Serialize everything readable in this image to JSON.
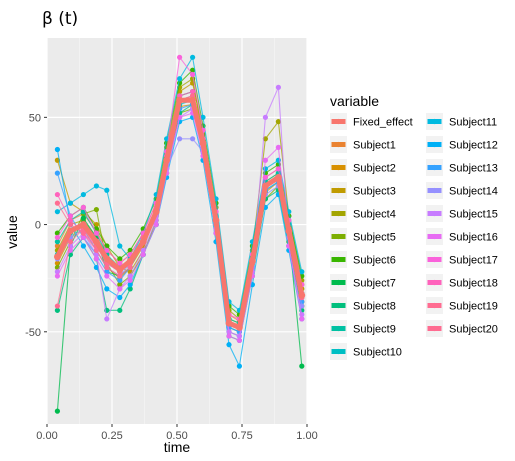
{
  "chart_data": {
    "type": "line",
    "title": "β (t)",
    "xlabel": "time",
    "ylabel": "value",
    "xlim": [
      0,
      1.0
    ],
    "ylim": [
      -93,
      87
    ],
    "xticks": [
      0.0,
      0.25,
      0.5,
      0.75,
      1.0
    ],
    "xtick_labels": [
      "0.00",
      "0.25",
      "0.50",
      "0.75",
      "1.00"
    ],
    "yticks": [
      -50,
      0,
      50
    ],
    "ytick_labels": [
      "-50",
      "0",
      "50"
    ],
    "grid": true,
    "legend_title": "variable",
    "legend_position": "right",
    "x": [
      0.04,
      0.09,
      0.14,
      0.19,
      0.23,
      0.28,
      0.32,
      0.37,
      0.42,
      0.46,
      0.51,
      0.56,
      0.6,
      0.65,
      0.7,
      0.74,
      0.79,
      0.84,
      0.89,
      0.93,
      0.98
    ],
    "series": [
      {
        "name": "Fixed_effect",
        "color": "#F8766D",
        "bold": true,
        "values": [
          -15,
          -3,
          0,
          -8,
          -16,
          -21,
          -17,
          -8,
          6,
          30,
          58,
          58,
          38,
          2,
          -46,
          -48,
          -17,
          18,
          22,
          -3,
          -33
        ]
      },
      {
        "name": "Subject1",
        "color": "#EA8331",
        "bold": false,
        "values": [
          -10,
          2,
          5,
          -3,
          -12,
          -18,
          -14,
          -4,
          10,
          34,
          60,
          62,
          42,
          6,
          -42,
          -45,
          -14,
          22,
          26,
          2,
          -28
        ]
      },
      {
        "name": "Subject2",
        "color": "#D89000",
        "bold": false,
        "values": [
          -18,
          -6,
          -2,
          -12,
          -20,
          -25,
          -20,
          -10,
          4,
          28,
          55,
          56,
          36,
          0,
          -48,
          -50,
          -20,
          15,
          20,
          -6,
          -36
        ]
      },
      {
        "name": "Subject3",
        "color": "#C09B00",
        "bold": false,
        "values": [
          30,
          10,
          6,
          0,
          -10,
          -20,
          -22,
          -12,
          8,
          32,
          62,
          66,
          44,
          4,
          -44,
          -46,
          -16,
          20,
          24,
          0,
          -30
        ]
      },
      {
        "name": "Subject4",
        "color": "#A3A500",
        "bold": false,
        "values": [
          -12,
          0,
          2,
          -6,
          -14,
          -22,
          -18,
          -6,
          8,
          36,
          64,
          68,
          40,
          8,
          -40,
          -44,
          -12,
          40,
          48,
          4,
          -26
        ]
      },
      {
        "name": "Subject5",
        "color": "#7CAE00",
        "bold": false,
        "values": [
          -20,
          -8,
          5,
          7,
          -18,
          -28,
          -24,
          -14,
          2,
          26,
          52,
          54,
          34,
          -2,
          -50,
          -52,
          -22,
          12,
          18,
          -8,
          -38
        ]
      },
      {
        "name": "Subject6",
        "color": "#39B600",
        "bold": false,
        "values": [
          -4,
          4,
          8,
          -2,
          -10,
          -16,
          -12,
          -2,
          12,
          38,
          66,
          72,
          46,
          10,
          -38,
          -42,
          -10,
          24,
          28,
          4,
          -24
        ]
      },
      {
        "name": "Subject7",
        "color": "#00BB4E",
        "bold": false,
        "values": [
          -87,
          -10,
          3,
          -6,
          -22,
          -24,
          -20,
          -8,
          6,
          30,
          58,
          60,
          38,
          2,
          -46,
          -48,
          -18,
          18,
          22,
          -4,
          -66
        ]
      },
      {
        "name": "Subject8",
        "color": "#00BF7D",
        "bold": false,
        "values": [
          -40,
          -14,
          -6,
          -16,
          -40,
          -40,
          -30,
          -14,
          0,
          24,
          52,
          56,
          34,
          -4,
          -52,
          -54,
          -24,
          12,
          16,
          -10,
          -40
        ]
      },
      {
        "name": "Subject9",
        "color": "#00C1A3",
        "bold": false,
        "values": [
          -8,
          2,
          6,
          -4,
          -14,
          -20,
          -16,
          -6,
          8,
          32,
          60,
          62,
          40,
          4,
          -44,
          -46,
          -16,
          20,
          24,
          0,
          -32
        ]
      },
      {
        "name": "Subject10",
        "color": "#00BFC4",
        "bold": false,
        "values": [
          -14,
          -4,
          0,
          -10,
          -18,
          -22,
          -18,
          -8,
          6,
          28,
          56,
          58,
          36,
          0,
          -48,
          -50,
          -18,
          16,
          20,
          -4,
          -34
        ]
      },
      {
        "name": "Subject11",
        "color": "#00BAE0",
        "bold": false,
        "values": [
          6,
          10,
          14,
          18,
          16,
          -10,
          -16,
          -4,
          14,
          40,
          68,
          78,
          50,
          12,
          -36,
          -40,
          -8,
          26,
          30,
          6,
          -22
        ]
      },
      {
        "name": "Subject12",
        "color": "#00B0F6",
        "bold": false,
        "values": [
          35,
          0,
          -10,
          -20,
          -30,
          -34,
          -28,
          -14,
          0,
          22,
          48,
          50,
          30,
          -8,
          -56,
          -66,
          -28,
          8,
          14,
          -12,
          -44
        ]
      },
      {
        "name": "Subject13",
        "color": "#35A2FF",
        "bold": false,
        "values": [
          24,
          4,
          -6,
          -14,
          -22,
          -26,
          -20,
          -8,
          6,
          30,
          54,
          56,
          36,
          0,
          -48,
          -50,
          -20,
          16,
          20,
          -4,
          -36
        ]
      },
      {
        "name": "Subject14",
        "color": "#9590FF",
        "bold": false,
        "values": [
          -16,
          -6,
          -2,
          -12,
          -20,
          -24,
          -18,
          -8,
          4,
          26,
          40,
          40,
          34,
          -2,
          -50,
          -52,
          -20,
          14,
          18,
          -6,
          -38
        ]
      },
      {
        "name": "Subject15",
        "color": "#C77CFF",
        "bold": false,
        "values": [
          -22,
          -10,
          -4,
          -14,
          -44,
          -30,
          -24,
          -12,
          2,
          26,
          50,
          54,
          34,
          -2,
          -50,
          -52,
          -22,
          50,
          64,
          -10,
          -42
        ]
      },
      {
        "name": "Subject16",
        "color": "#E76BF3",
        "bold": false,
        "values": [
          -24,
          -12,
          -6,
          -16,
          -24,
          -30,
          -26,
          -14,
          0,
          24,
          50,
          52,
          32,
          -4,
          -52,
          -54,
          -24,
          30,
          36,
          -10,
          -44
        ]
      },
      {
        "name": "Subject17",
        "color": "#FA62DB",
        "bold": false,
        "values": [
          -6,
          4,
          8,
          -4,
          -12,
          -18,
          -14,
          -4,
          10,
          34,
          78,
          70,
          44,
          6,
          -42,
          -44,
          -14,
          22,
          26,
          2,
          -28
        ]
      },
      {
        "name": "Subject18",
        "color": "#FF62BC",
        "bold": false,
        "values": [
          14,
          2,
          -4,
          -10,
          -18,
          -22,
          -18,
          -6,
          8,
          32,
          60,
          62,
          40,
          2,
          -46,
          -48,
          -16,
          18,
          22,
          -2,
          -34
        ]
      },
      {
        "name": "Subject19",
        "color": "#FF6C91",
        "bold": false,
        "values": [
          10,
          0,
          -4,
          -12,
          -20,
          -24,
          -20,
          -8,
          6,
          30,
          58,
          60,
          38,
          0,
          -46,
          -48,
          -18,
          18,
          22,
          -2,
          -32
        ]
      },
      {
        "name": "Subject20",
        "color": "#FF6C91",
        "bold": false,
        "values": [
          -38,
          -8,
          -2,
          -10,
          -18,
          -22,
          -18,
          -6,
          6,
          30,
          58,
          60,
          38,
          2,
          -46,
          -48,
          -18,
          18,
          22,
          -2,
          -34
        ]
      }
    ]
  }
}
